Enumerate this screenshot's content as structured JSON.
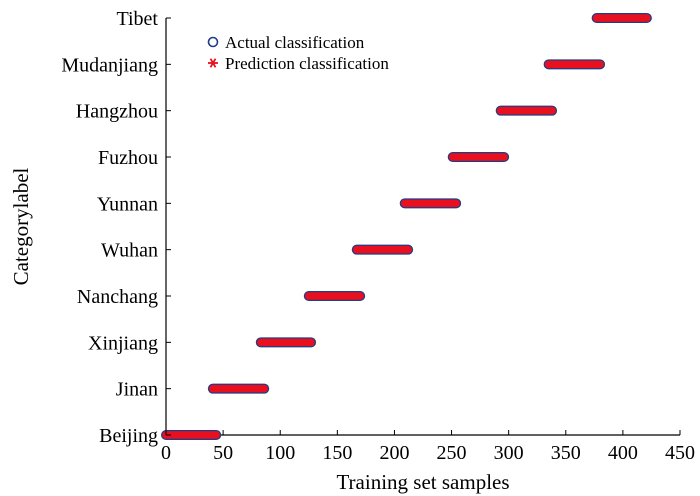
{
  "chart_data": {
    "type": "scatter",
    "xlabel": "Training set samples",
    "ylabel": "Categorylabel",
    "xlim": [
      0,
      450
    ],
    "xticks": [
      0,
      50,
      100,
      150,
      200,
      250,
      300,
      350,
      400,
      450
    ],
    "categories": [
      "Beijing",
      "Jinan",
      "Xinjiang",
      "Nanchang",
      "Wuhan",
      "Yunnan",
      "Fuzhou",
      "Hangzhou",
      "Mudanjiang",
      "Tibet"
    ],
    "legend_position": "top-left",
    "grid": false,
    "series": [
      {
        "name": "Actual classification",
        "marker": "circle",
        "color": "#1f3c88",
        "segments": [
          {
            "category": "Beijing",
            "x_start": 0,
            "x_end": 44
          },
          {
            "category": "Jinan",
            "x_start": 41,
            "x_end": 86
          },
          {
            "category": "Xinjiang",
            "x_start": 83,
            "x_end": 127
          },
          {
            "category": "Nanchang",
            "x_start": 125,
            "x_end": 170
          },
          {
            "category": "Wuhan",
            "x_start": 167,
            "x_end": 212
          },
          {
            "category": "Yunnan",
            "x_start": 209,
            "x_end": 254
          },
          {
            "category": "Fuzhou",
            "x_start": 251,
            "x_end": 296
          },
          {
            "category": "Hangzhou",
            "x_start": 293,
            "x_end": 338
          },
          {
            "category": "Mudanjiang",
            "x_start": 335,
            "x_end": 380
          },
          {
            "category": "Tibet",
            "x_start": 377,
            "x_end": 421
          }
        ]
      },
      {
        "name": "Prediction classification",
        "marker": "asterisk",
        "color": "#e8101e",
        "segments": [
          {
            "category": "Beijing",
            "x_start": 0,
            "x_end": 44
          },
          {
            "category": "Jinan",
            "x_start": 41,
            "x_end": 86
          },
          {
            "category": "Xinjiang",
            "x_start": 83,
            "x_end": 127
          },
          {
            "category": "Nanchang",
            "x_start": 125,
            "x_end": 170
          },
          {
            "category": "Wuhan",
            "x_start": 167,
            "x_end": 212
          },
          {
            "category": "Yunnan",
            "x_start": 209,
            "x_end": 254
          },
          {
            "category": "Fuzhou",
            "x_start": 251,
            "x_end": 296
          },
          {
            "category": "Hangzhou",
            "x_start": 293,
            "x_end": 338
          },
          {
            "category": "Mudanjiang",
            "x_start": 335,
            "x_end": 380
          },
          {
            "category": "Tibet",
            "x_start": 377,
            "x_end": 421
          }
        ]
      }
    ]
  }
}
